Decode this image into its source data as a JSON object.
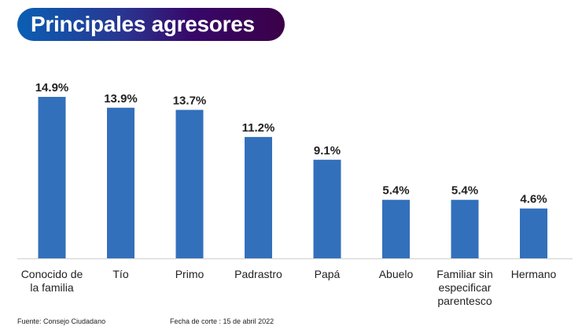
{
  "chart_data": {
    "type": "bar",
    "title": "Principales agresores",
    "categories": [
      "Conocido de la familia",
      "Tío",
      "Primo",
      "Padrastro",
      "Papá",
      "Abuelo",
      "Familiar sin especificar parentesco",
      "Hermano"
    ],
    "category_lines": [
      [
        "Conocido de",
        "la familia"
      ],
      [
        "Tío"
      ],
      [
        "Primo"
      ],
      [
        "Padrastro"
      ],
      [
        "Papá"
      ],
      [
        "Abuelo"
      ],
      [
        "Familiar sin",
        "especificar",
        "parentesco"
      ],
      [
        "Hermano"
      ]
    ],
    "values": [
      14.9,
      13.9,
      13.7,
      11.2,
      9.1,
      5.4,
      5.4,
      4.6
    ],
    "value_labels": [
      "14.9%",
      "13.9%",
      "13.7%",
      "11.2%",
      "9.1%",
      "5.4%",
      "5.4%",
      "4.6%"
    ],
    "xlabel": "",
    "ylabel": "",
    "ylim": [
      0,
      15
    ],
    "grid": false,
    "bar_color": "#3370bb"
  },
  "footer": {
    "source": "Fuente: Consejo Ciudadano",
    "date": "Fecha de corte : 15 de abril 2022"
  }
}
